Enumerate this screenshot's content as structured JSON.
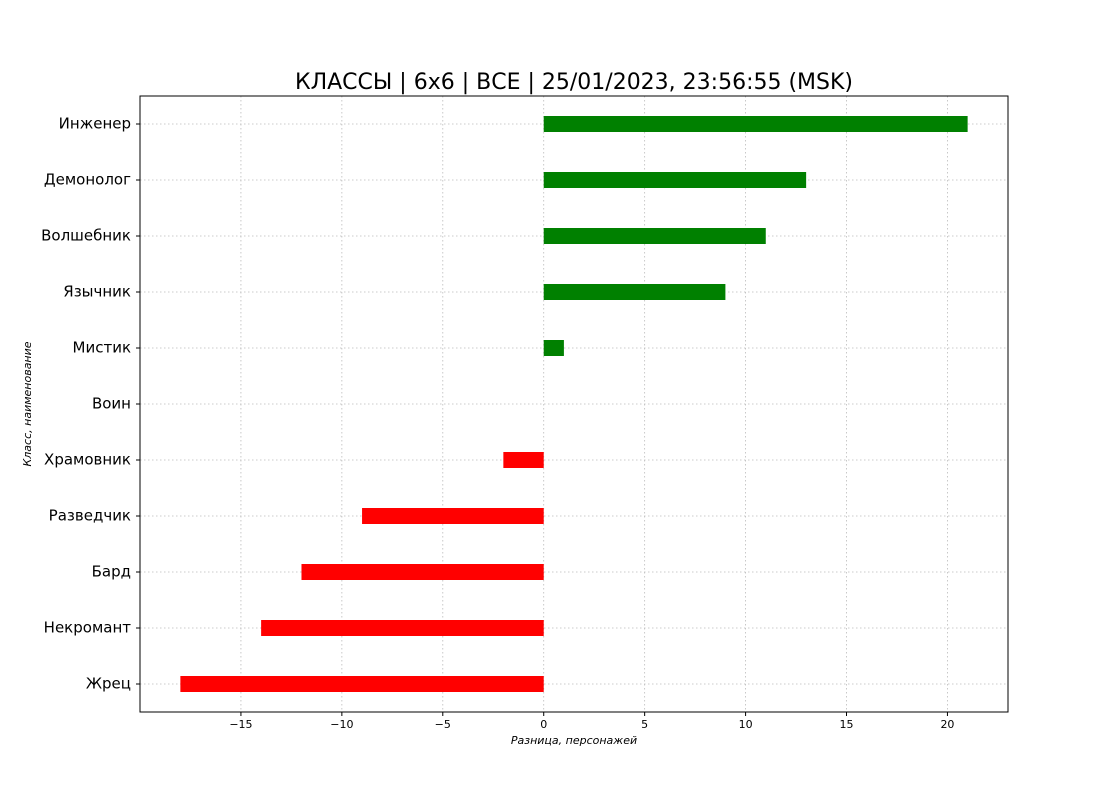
{
  "chart_data": {
    "type": "barh",
    "title": "КЛАССЫ | 6x6 | ВСЕ | 25/01/2023, 23:56:55 (MSK)",
    "x_label": "Разница, персонажей",
    "y_label": "Класс, наименование",
    "categories": [
      "Инженер",
      "Демонолог",
      "Волшебник",
      "Язычник",
      "Мистик",
      "Воин",
      "Храмовник",
      "Разведчик",
      "Бард",
      "Некромант",
      "Жрец"
    ],
    "values": [
      21,
      13,
      11,
      9,
      1,
      0,
      -2,
      -9,
      -12,
      -14,
      -18
    ],
    "positive_color": "#008000",
    "negative_color": "#ff0000",
    "xlim": [
      -20,
      23
    ],
    "xticks": [
      {
        "value": -15,
        "label": "−15"
      },
      {
        "value": -10,
        "label": "−10"
      },
      {
        "value": -5,
        "label": "−5"
      },
      0,
      5,
      10,
      15,
      20
    ],
    "grid": true
  }
}
